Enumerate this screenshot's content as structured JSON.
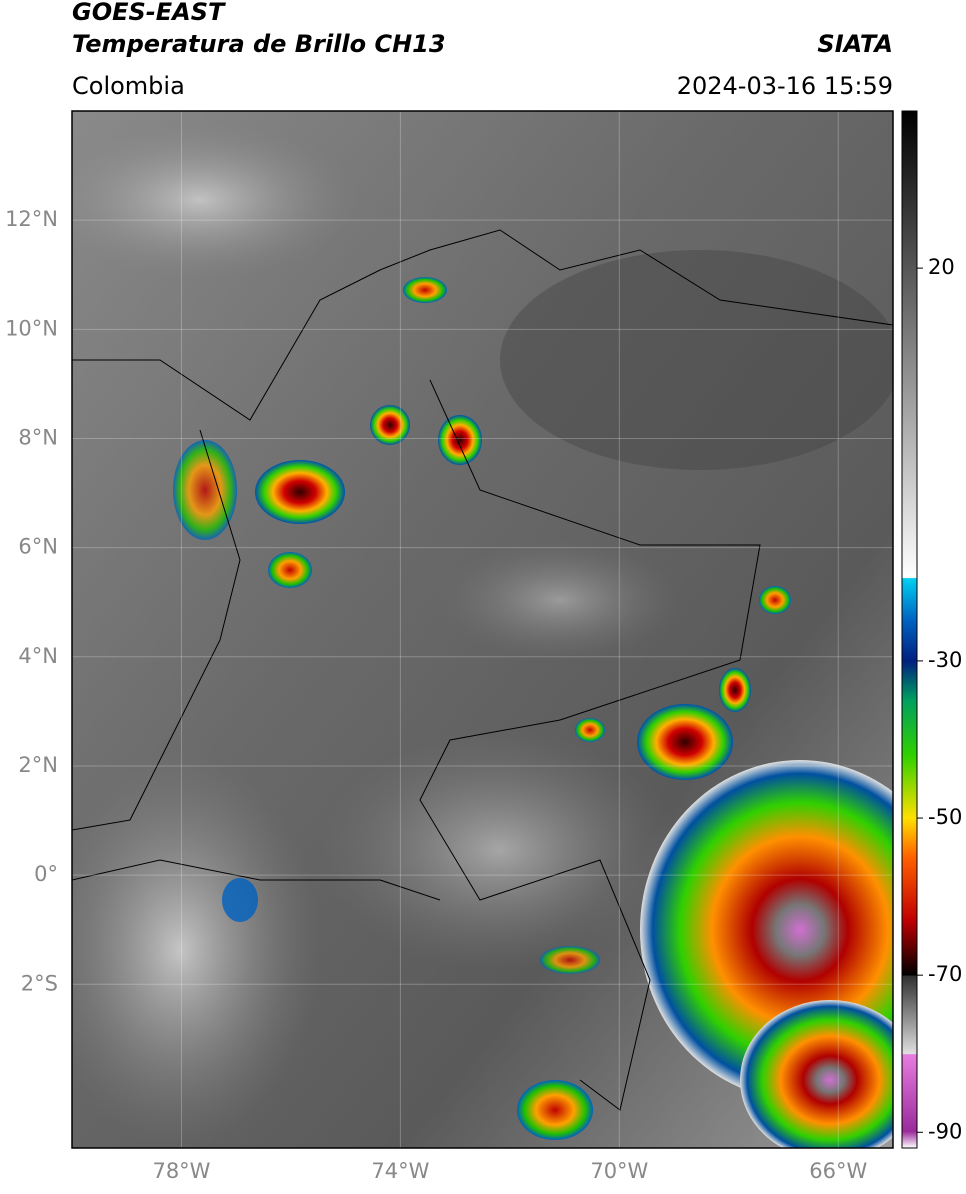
{
  "header": {
    "title": "GOES-EAST",
    "subtitle": "Temperatura de Brillo CH13",
    "source": "SIATA",
    "region": "Colombia",
    "datetime": "2024-03-16 15:59"
  },
  "map": {
    "lon_range": [
      -80,
      -65
    ],
    "lat_range": [
      -5,
      14
    ],
    "grid": true,
    "lat_ticks": [
      {
        "value": 12,
        "label": "12°N"
      },
      {
        "value": 10,
        "label": "10°N"
      },
      {
        "value": 8,
        "label": "8°N"
      },
      {
        "value": 6,
        "label": "6°N"
      },
      {
        "value": 4,
        "label": "4°N"
      },
      {
        "value": 2,
        "label": "2°N"
      },
      {
        "value": 0,
        "label": "0°"
      },
      {
        "value": -2,
        "label": "2°S"
      }
    ],
    "lon_ticks": [
      {
        "value": -78,
        "label": "78°W"
      },
      {
        "value": -74,
        "label": "74°W"
      },
      {
        "value": -70,
        "label": "70°W"
      },
      {
        "value": -66,
        "label": "66°W"
      }
    ]
  },
  "colorbar": {
    "range": [
      -92,
      40
    ],
    "ticks": [
      20,
      -30,
      -50,
      -70,
      -90
    ],
    "stops": [
      {
        "value": -92,
        "color": "#ffffff"
      },
      {
        "value": -89.9,
        "color": "#9b2a9b"
      },
      {
        "value": -80.1,
        "color": "#e77de0"
      },
      {
        "value": -80,
        "color": "#e0e0e0"
      },
      {
        "value": -70.1,
        "color": "#303030"
      },
      {
        "value": -70,
        "color": "#000000"
      },
      {
        "value": -63,
        "color": "#c00000"
      },
      {
        "value": -55,
        "color": "#ff6000"
      },
      {
        "value": -50,
        "color": "#ffe000"
      },
      {
        "value": -42,
        "color": "#30d000"
      },
      {
        "value": -35,
        "color": "#00a060"
      },
      {
        "value": -30,
        "color": "#002080"
      },
      {
        "value": -25,
        "color": "#0060c0"
      },
      {
        "value": -19.5,
        "color": "#00d0f0"
      },
      {
        "value": -19.4,
        "color": "#ffffff"
      },
      {
        "value": 40,
        "color": "#000000"
      }
    ]
  }
}
